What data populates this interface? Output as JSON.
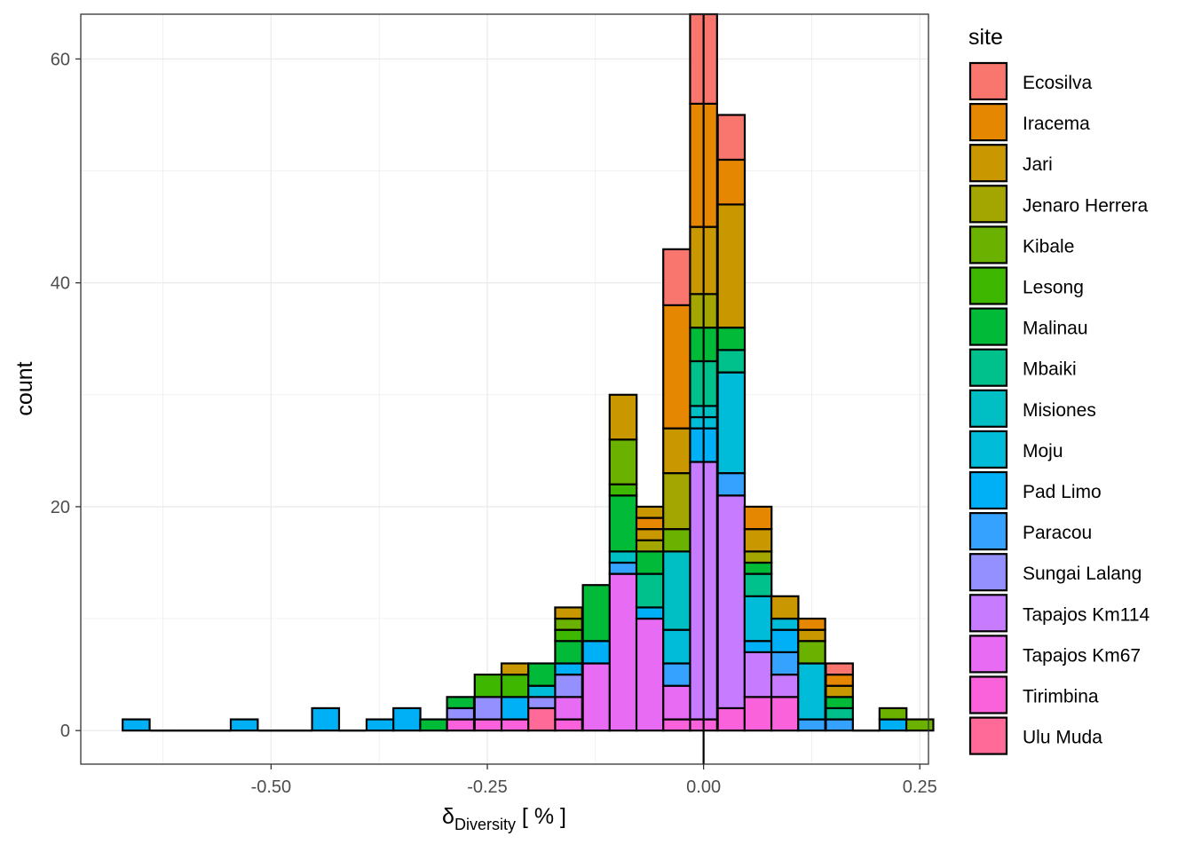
{
  "chart_data": {
    "type": "bar",
    "subtype": "stacked-histogram",
    "xlabel_main": "δ",
    "xlabel_sub": "Diversity",
    "xlabel_unit": " [ % ]",
    "ylabel": "count",
    "xlim": [
      -0.72,
      0.26
    ],
    "ylim": [
      -3,
      64
    ],
    "x_ticks": [
      -0.5,
      -0.25,
      0.0,
      0.25
    ],
    "x_tick_labels": [
      "-0.50",
      "-0.25",
      "0.00",
      "0.25"
    ],
    "y_ticks": [
      0,
      20,
      40,
      60
    ],
    "y_tick_labels": [
      "0",
      "20",
      "40",
      "60"
    ],
    "grid": true,
    "vline_x": 0,
    "legend": {
      "title": "site",
      "position": "right",
      "entries": [
        {
          "name": "Ecosilva",
          "color": "#F8766D"
        },
        {
          "name": "Iracema",
          "color": "#E58700"
        },
        {
          "name": "Jari",
          "color": "#C99800"
        },
        {
          "name": "Jenaro Herrera",
          "color": "#A3A500"
        },
        {
          "name": "Kibale",
          "color": "#6BB100"
        },
        {
          "name": "Lesong",
          "color": "#3DB700"
        },
        {
          "name": "Malinau",
          "color": "#00BA38"
        },
        {
          "name": "Mbaiki",
          "color": "#00C08B"
        },
        {
          "name": "Misiones",
          "color": "#00BFC4"
        },
        {
          "name": "Moju",
          "color": "#00BCD8"
        },
        {
          "name": "Pad Limo",
          "color": "#00B0F6"
        },
        {
          "name": "Paracou",
          "color": "#35A2FF"
        },
        {
          "name": "Sungai Lalang",
          "color": "#9590FF"
        },
        {
          "name": "Tapajos Km114",
          "color": "#C77CFF"
        },
        {
          "name": "Tapajos Km67",
          "color": "#E76BF3"
        },
        {
          "name": "Tirimbina",
          "color": "#FA62DB"
        },
        {
          "name": "Ulu Muda",
          "color": "#FF6A98"
        }
      ]
    },
    "bin_centers": [
      -0.656,
      -0.624,
      -0.593,
      -0.562,
      -0.531,
      -0.499,
      -0.468,
      -0.437,
      -0.406,
      -0.374,
      -0.343,
      -0.312,
      -0.281,
      -0.249,
      -0.218,
      -0.187,
      -0.156,
      -0.124,
      -0.093,
      -0.062,
      -0.031,
      0.0,
      0.032,
      0.063,
      0.094,
      0.125,
      0.157,
      0.188,
      0.219,
      0.25
    ],
    "bin_width": 0.0312,
    "bins": [
      {
        "x": -0.656,
        "segments": [
          [
            "Pad Limo",
            1
          ]
        ]
      },
      {
        "x": -0.624,
        "segments": []
      },
      {
        "x": -0.593,
        "segments": []
      },
      {
        "x": -0.562,
        "segments": []
      },
      {
        "x": -0.531,
        "segments": [
          [
            "Pad Limo",
            1
          ]
        ]
      },
      {
        "x": -0.499,
        "segments": []
      },
      {
        "x": -0.468,
        "segments": []
      },
      {
        "x": -0.437,
        "segments": [
          [
            "Pad Limo",
            2
          ]
        ]
      },
      {
        "x": -0.406,
        "segments": []
      },
      {
        "x": -0.374,
        "segments": [
          [
            "Pad Limo",
            1
          ]
        ]
      },
      {
        "x": -0.343,
        "segments": [
          [
            "Pad Limo",
            2
          ]
        ]
      },
      {
        "x": -0.312,
        "segments": [
          [
            "Malinau",
            1
          ]
        ]
      },
      {
        "x": -0.281,
        "segments": [
          [
            "Tirimbina",
            1
          ],
          [
            "Sungai Lalang",
            1
          ],
          [
            "Malinau",
            1
          ]
        ]
      },
      {
        "x": -0.249,
        "segments": [
          [
            "Tirimbina",
            1
          ],
          [
            "Sungai Lalang",
            2
          ],
          [
            "Lesong",
            2
          ]
        ]
      },
      {
        "x": -0.218,
        "segments": [
          [
            "Tirimbina",
            1
          ],
          [
            "Pad Limo",
            2
          ],
          [
            "Lesong",
            2
          ],
          [
            "Jari",
            1
          ]
        ]
      },
      {
        "x": -0.187,
        "segments": [
          [
            "Ulu Muda",
            2
          ],
          [
            "Sungai Lalang",
            1
          ],
          [
            "Moju",
            1
          ],
          [
            "Malinau",
            2
          ]
        ]
      },
      {
        "x": -0.156,
        "segments": [
          [
            "Tirimbina",
            1
          ],
          [
            "Tapajos Km67",
            2
          ],
          [
            "Sungai Lalang",
            2
          ],
          [
            "Pad Limo",
            1
          ],
          [
            "Malinau",
            2
          ],
          [
            "Lesong",
            1
          ],
          [
            "Kibale",
            1
          ],
          [
            "Jari",
            1
          ]
        ]
      },
      {
        "x": -0.124,
        "segments": [
          [
            "Tapajos Km67",
            6
          ],
          [
            "Pad Limo",
            2
          ],
          [
            "Malinau",
            5
          ]
        ]
      },
      {
        "x": -0.093,
        "segments": [
          [
            "Tapajos Km67",
            14
          ],
          [
            "Paracou",
            1
          ],
          [
            "Misiones",
            1
          ],
          [
            "Malinau",
            5
          ],
          [
            "Lesong",
            1
          ],
          [
            "Kibale",
            4
          ],
          [
            "Jari",
            4
          ]
        ]
      },
      {
        "x": -0.062,
        "segments": [
          [
            "Tapajos Km67",
            10
          ],
          [
            "Pad Limo",
            1
          ],
          [
            "Mbaiki",
            3
          ],
          [
            "Malinau",
            2
          ],
          [
            "Jenaro Herrera",
            1
          ],
          [
            "Jari",
            1
          ],
          [
            "Iracema",
            1
          ],
          [
            "Jari",
            1
          ]
        ]
      },
      {
        "x": -0.031,
        "segments": [
          [
            "Tirimbina",
            1
          ],
          [
            "Tapajos Km67",
            3
          ],
          [
            "Paracou",
            2
          ],
          [
            "Moju",
            3
          ],
          [
            "Misiones",
            7
          ],
          [
            "Kibale",
            2
          ],
          [
            "Jenaro Herrera",
            5
          ],
          [
            "Jari",
            4
          ],
          [
            "Iracema",
            11
          ],
          [
            "Ecosilva",
            5
          ]
        ]
      },
      {
        "x": 0.0,
        "segments": [
          [
            "Tirimbina",
            1
          ],
          [
            "Tapajos Km114",
            23
          ],
          [
            "Pad Limo",
            3
          ],
          [
            "Moju",
            1
          ],
          [
            "Misiones",
            1
          ],
          [
            "Mbaiki",
            4
          ],
          [
            "Malinau",
            3
          ],
          [
            "Jenaro Herrera",
            3
          ],
          [
            "Jari",
            6
          ],
          [
            "Iracema",
            11
          ],
          [
            "Ecosilva",
            8
          ]
        ]
      },
      {
        "x": 0.032,
        "segments": [
          [
            "Tirimbina",
            2
          ],
          [
            "Tapajos Km114",
            19
          ],
          [
            "Paracou",
            2
          ],
          [
            "Moju",
            9
          ],
          [
            "Mbaiki",
            2
          ],
          [
            "Malinau",
            2
          ],
          [
            "Jari",
            11
          ],
          [
            "Iracema",
            4
          ],
          [
            "Ecosilva",
            4
          ]
        ]
      },
      {
        "x": 0.063,
        "segments": [
          [
            "Tirimbina",
            3
          ],
          [
            "Tapajos Km114",
            4
          ],
          [
            "Pad Limo",
            1
          ],
          [
            "Moju",
            4
          ],
          [
            "Mbaiki",
            2
          ],
          [
            "Malinau",
            1
          ],
          [
            "Jenaro Herrera",
            1
          ],
          [
            "Jari",
            2
          ],
          [
            "Iracema",
            2
          ]
        ]
      },
      {
        "x": 0.094,
        "segments": [
          [
            "Tirimbina",
            3
          ],
          [
            "Tapajos Km114",
            2
          ],
          [
            "Paracou",
            2
          ],
          [
            "Pad Limo",
            2
          ],
          [
            "Moju",
            1
          ],
          [
            "Jari",
            2
          ]
        ]
      },
      {
        "x": 0.125,
        "segments": [
          [
            "Paracou",
            1
          ],
          [
            "Moju",
            5
          ],
          [
            "Kibale",
            2
          ],
          [
            "Jari",
            1
          ],
          [
            "Iracema",
            1
          ]
        ]
      },
      {
        "x": 0.157,
        "segments": [
          [
            "Paracou",
            1
          ],
          [
            "Mbaiki",
            1
          ],
          [
            "Malinau",
            1
          ],
          [
            "Jari",
            1
          ],
          [
            "Iracema",
            1
          ],
          [
            "Ecosilva",
            1
          ]
        ]
      },
      {
        "x": 0.188,
        "segments": []
      },
      {
        "x": 0.219,
        "segments": [
          [
            "Pad Limo",
            1
          ],
          [
            "Kibale",
            1
          ]
        ]
      },
      {
        "x": 0.25,
        "segments": [
          [
            "Kibale",
            1
          ]
        ]
      }
    ]
  }
}
